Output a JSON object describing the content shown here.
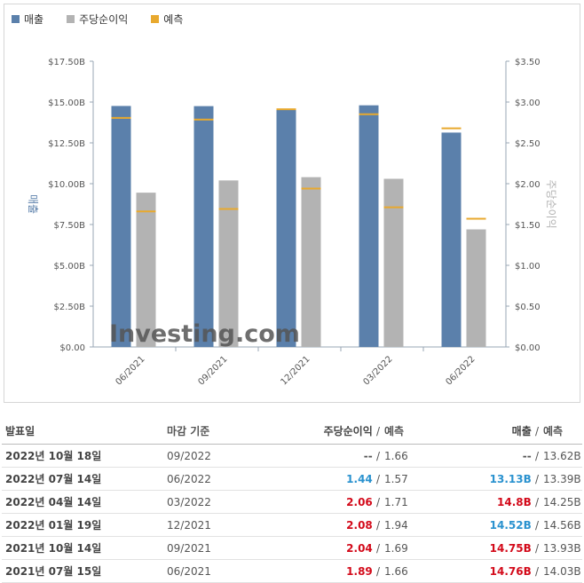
{
  "legend": {
    "revenue": "매출",
    "eps": "주당순이익",
    "forecast": "예측"
  },
  "colors": {
    "revenue": "#5b80ab",
    "eps": "#b3b3b3",
    "forecast": "#e8a92e",
    "positive": "#2a92cf",
    "negative": "#d30a1a"
  },
  "chart_data": {
    "type": "bar",
    "categories": [
      "06/2021",
      "09/2021",
      "12/2021",
      "03/2022",
      "06/2022"
    ],
    "series": [
      {
        "name": "매출",
        "axis": "left",
        "values": [
          14.76,
          14.75,
          14.52,
          14.8,
          13.13
        ],
        "forecast": [
          14.03,
          13.93,
          14.56,
          14.25,
          13.39
        ]
      },
      {
        "name": "주당순이익",
        "axis": "right",
        "values": [
          1.89,
          2.04,
          2.08,
          2.06,
          1.44
        ],
        "forecast": [
          1.66,
          1.69,
          1.94,
          1.71,
          1.57
        ]
      }
    ],
    "ylabel": "매출",
    "y2label": "주당순이익",
    "ylim": [
      0,
      17.5
    ],
    "y2lim": [
      0,
      3.5
    ],
    "yticks": [
      "$0.00",
      "$2.50B",
      "$5.00B",
      "$7.50B",
      "$10.00B",
      "$12.50B",
      "$15.00B",
      "$17.50B"
    ],
    "y2ticks": [
      "$0.00",
      "$0.50",
      "$1.00",
      "$1.50",
      "$2.00",
      "$2.50",
      "$3.00",
      "$3.50"
    ],
    "watermark": "Investing.com"
  },
  "table": {
    "headers": {
      "date": "발표일",
      "period": "마감 기준",
      "eps": "주당순이익",
      "eps_forecast": "예측",
      "revenue": "매출",
      "revenue_forecast": "예측"
    },
    "separator": "/",
    "rows": [
      {
        "date": "2022년 10월 18일",
        "period": "09/2022",
        "eps": "--",
        "eps_forecast": "1.66",
        "revenue": "--",
        "revenue_forecast": "13.62B",
        "eps_status": "neu",
        "rev_status": "neu"
      },
      {
        "date": "2022년 07월 14일",
        "period": "06/2022",
        "eps": "1.44",
        "eps_forecast": "1.57",
        "revenue": "13.13B",
        "revenue_forecast": "13.39B",
        "eps_status": "pos",
        "rev_status": "pos"
      },
      {
        "date": "2022년 04월 14일",
        "period": "03/2022",
        "eps": "2.06",
        "eps_forecast": "1.71",
        "revenue": "14.8B",
        "revenue_forecast": "14.25B",
        "eps_status": "neg",
        "rev_status": "neg"
      },
      {
        "date": "2022년 01월 19일",
        "period": "12/2021",
        "eps": "2.08",
        "eps_forecast": "1.94",
        "revenue": "14.52B",
        "revenue_forecast": "14.56B",
        "eps_status": "neg",
        "rev_status": "pos"
      },
      {
        "date": "2021년 10월 14일",
        "period": "09/2021",
        "eps": "2.04",
        "eps_forecast": "1.69",
        "revenue": "14.75B",
        "revenue_forecast": "13.93B",
        "eps_status": "neg",
        "rev_status": "neg"
      },
      {
        "date": "2021년 07월 15일",
        "period": "06/2021",
        "eps": "1.89",
        "eps_forecast": "1.66",
        "revenue": "14.76B",
        "revenue_forecast": "14.03B",
        "eps_status": "neg",
        "rev_status": "neg"
      }
    ]
  }
}
